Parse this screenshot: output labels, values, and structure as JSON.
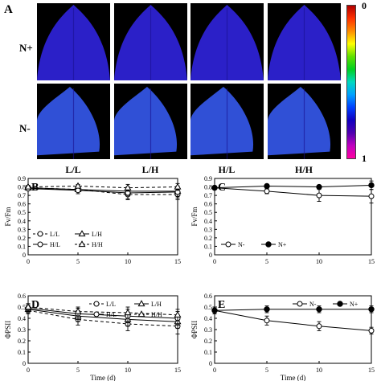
{
  "panel_a": {
    "label": "A",
    "row_labels": [
      "N+",
      "N-"
    ],
    "col_labels": [
      "L/L",
      "L/H",
      "H/L",
      "H/H"
    ],
    "colorbar": {
      "top_label": "0",
      "bottom_label": "1",
      "stops": [
        "#b00000",
        "#ff3000",
        "#ff8c00",
        "#ffff00",
        "#60e000",
        "#00d020",
        "#00d8c0",
        "#00a0ff",
        "#0040ff",
        "#1000c0",
        "#5000b0",
        "#c000c0",
        "#ff00a0"
      ]
    },
    "leaf_colors": {
      "N+": "#2b20c8",
      "N-": "#3050d6"
    }
  },
  "chart_data": [
    {
      "id": "B",
      "type": "line",
      "label": "B",
      "ylabel": "Fv/Fm",
      "xlabel": "",
      "x": [
        0,
        5,
        10,
        15
      ],
      "ylim": [
        0,
        0.9
      ],
      "yticks": [
        "0",
        "0.1",
        "0.2",
        "0.3",
        "0.4",
        "0.5",
        "0.6",
        "0.7",
        "0.8",
        "0.9"
      ],
      "xticks": [
        "0",
        "5",
        "10",
        "15"
      ],
      "series": [
        {
          "name": "L/L",
          "marker": "circle-open",
          "dash": true,
          "values": [
            0.79,
            0.77,
            0.71,
            0.71
          ],
          "err": [
            0.02,
            0.03,
            0.06,
            0.06
          ]
        },
        {
          "name": "L/H",
          "marker": "triangle-open",
          "dash": false,
          "values": [
            0.79,
            0.77,
            0.75,
            0.75
          ],
          "err": [
            0.02,
            0.03,
            0.05,
            0.06
          ]
        },
        {
          "name": "H/L",
          "marker": "circle-open",
          "dash": false,
          "values": [
            0.78,
            0.76,
            0.73,
            0.74
          ],
          "err": [
            0.02,
            0.04,
            0.07,
            0.07
          ]
        },
        {
          "name": "H/H",
          "marker": "triangle-open",
          "dash": true,
          "values": [
            0.8,
            0.81,
            0.79,
            0.8
          ],
          "err": [
            0.02,
            0.02,
            0.04,
            0.04
          ]
        }
      ]
    },
    {
      "id": "C",
      "type": "line",
      "label": "C",
      "ylabel": "Fv/Fm",
      "xlabel": "",
      "x": [
        0,
        5,
        10,
        15
      ],
      "ylim": [
        0,
        0.9
      ],
      "yticks": [
        "0",
        "0.1",
        "0.2",
        "0.3",
        "0.4",
        "0.5",
        "0.6",
        "0.7",
        "0.8",
        "0.9"
      ],
      "xticks": [
        "0",
        "5",
        "10",
        "15"
      ],
      "series": [
        {
          "name": "N-",
          "marker": "circle-open",
          "dash": false,
          "values": [
            0.79,
            0.75,
            0.7,
            0.69
          ],
          "err": [
            0.01,
            0.03,
            0.07,
            0.08
          ]
        },
        {
          "name": "N+",
          "marker": "circle-filled",
          "dash": false,
          "values": [
            0.79,
            0.81,
            0.8,
            0.82
          ],
          "err": [
            0.01,
            0.02,
            0.02,
            0.05
          ]
        }
      ]
    },
    {
      "id": "D",
      "type": "line",
      "label": "D",
      "ylabel": "ΦPSII",
      "xlabel": "Time (d)",
      "x": [
        0,
        5,
        10,
        15
      ],
      "ylim": [
        0,
        0.6
      ],
      "yticks": [
        "0",
        "0.1",
        "0.2",
        "0.3",
        "0.4",
        "0.5",
        "0.6"
      ],
      "xticks": [
        "0",
        "5",
        "10",
        "15"
      ],
      "series": [
        {
          "name": "L/L",
          "marker": "circle-open",
          "dash": true,
          "values": [
            0.47,
            0.39,
            0.35,
            0.33
          ],
          "err": [
            0.03,
            0.05,
            0.06,
            0.07
          ]
        },
        {
          "name": "L/H",
          "marker": "triangle-open",
          "dash": false,
          "values": [
            0.48,
            0.42,
            0.39,
            0.37
          ],
          "err": [
            0.03,
            0.05,
            0.06,
            0.06
          ]
        },
        {
          "name": "H/L",
          "marker": "circle-open",
          "dash": false,
          "values": [
            0.49,
            0.44,
            0.42,
            0.4
          ],
          "err": [
            0.03,
            0.05,
            0.06,
            0.06
          ]
        },
        {
          "name": "H/H",
          "marker": "triangle-open",
          "dash": true,
          "values": [
            0.5,
            0.46,
            0.45,
            0.43
          ],
          "err": [
            0.03,
            0.04,
            0.05,
            0.05
          ]
        }
      ]
    },
    {
      "id": "E",
      "type": "line",
      "label": "E",
      "ylabel": "ΦPSII",
      "xlabel": "Time (d)",
      "x": [
        0,
        5,
        10,
        15
      ],
      "ylim": [
        0,
        0.6
      ],
      "yticks": [
        "0",
        "0.1",
        "0.2",
        "0.3",
        "0.4",
        "0.5",
        "0.6"
      ],
      "xticks": [
        "0",
        "5",
        "10",
        "15"
      ],
      "series": [
        {
          "name": "N-",
          "marker": "circle-open",
          "dash": false,
          "values": [
            0.47,
            0.38,
            0.33,
            0.29
          ],
          "err": [
            0.03,
            0.04,
            0.04,
            0.03
          ]
        },
        {
          "name": "N+",
          "marker": "circle-filled",
          "dash": false,
          "values": [
            0.47,
            0.48,
            0.48,
            0.48
          ],
          "err": [
            0.03,
            0.03,
            0.03,
            0.03
          ]
        }
      ]
    }
  ]
}
